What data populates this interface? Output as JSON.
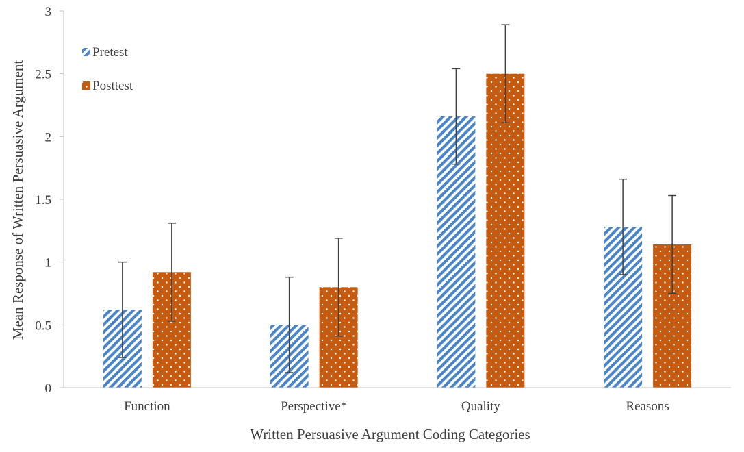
{
  "chart_data": {
    "type": "bar",
    "title": "",
    "xlabel": "Written Persuasive Argument Coding Categories",
    "ylabel": "Mean Response of Written Persuasive Argument",
    "ylim": [
      0,
      3
    ],
    "yticks": [
      "0",
      "0.5",
      "1",
      "1.5",
      "2",
      "2.5",
      "3"
    ],
    "grid": false,
    "legend_position": "top-left",
    "categories": [
      "Function",
      "Perspective*",
      "Quality",
      "Reasons"
    ],
    "series": [
      {
        "name": "Pretest",
        "pattern": "diagonal-stripes",
        "color": "#4a86c6",
        "values": [
          0.62,
          0.5,
          2.16,
          1.28
        ],
        "error": [
          0.38,
          0.38,
          0.38,
          0.38
        ]
      },
      {
        "name": "Posttest",
        "pattern": "dots",
        "color": "#c55a11",
        "values": [
          0.92,
          0.8,
          2.5,
          1.14
        ],
        "error": [
          0.39,
          0.39,
          0.39,
          0.39
        ]
      }
    ]
  }
}
